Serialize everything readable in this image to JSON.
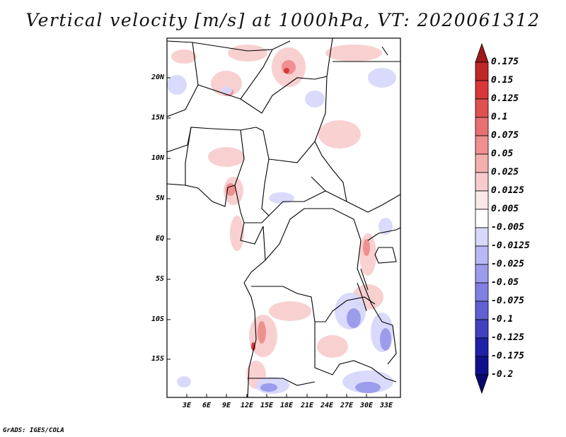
{
  "title": "Vertical velocity [m/s] at 1000hPa, VT: 2020061312",
  "map": {
    "lat_ticks": [
      "20N",
      "15N",
      "10N",
      "5N",
      "EQ",
      "5S",
      "10S",
      "15S"
    ],
    "lon_ticks": [
      "3E",
      "6E",
      "9E",
      "12E",
      "15E",
      "18E",
      "21E",
      "24E",
      "27E",
      "30E",
      "33E"
    ]
  },
  "colorbar": {
    "labels": [
      "0.175",
      "0.15",
      "0.125",
      "0.1",
      "0.075",
      "0.05",
      "0.025",
      "0.0125",
      "0.005",
      "-0.005",
      "-0.0125",
      "-0.025",
      "-0.05",
      "-0.075",
      "-0.1",
      "-0.125",
      "-0.175",
      "-0.2"
    ],
    "colors": [
      "#a01818",
      "#c02828",
      "#d83838",
      "#e05050",
      "#e87070",
      "#f09090",
      "#f4b0b0",
      "#f8cccc",
      "#fce8e8",
      "#ffffff",
      "#d8d8fc",
      "#b8b8f4",
      "#9c9cec",
      "#8080e0",
      "#6060d4",
      "#4040c0",
      "#2020a8",
      "#10108c",
      "#080870"
    ]
  },
  "footer": "GrADS: IGES/COLA"
}
